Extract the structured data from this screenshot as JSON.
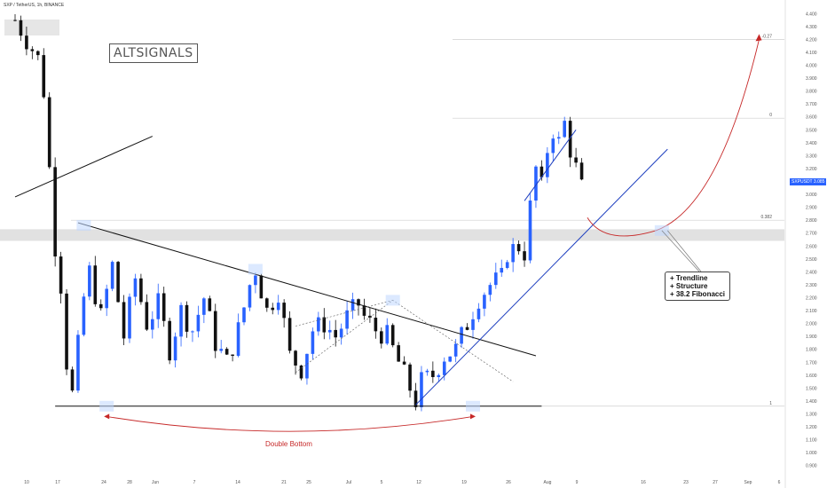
{
  "header": {
    "symbol": "SXP / TetherUS, 1h, BINANCE"
  },
  "brand": {
    "label": "ALTSIGNALS"
  },
  "annotations": {
    "note_lines": [
      "+ Trendline",
      "+ Structure",
      "+ 38.2 Fibonacci"
    ],
    "double_bottom": "Double Bottom",
    "fib_labels": [
      "-0.27",
      "0",
      "0.382",
      "1"
    ]
  },
  "price_tag": {
    "symbol": "SXPUSDT",
    "value": "3.085"
  },
  "colors": {
    "up": "#2962ff",
    "down": "#111111",
    "projection": "#c62828",
    "trend": "#1e3fbf",
    "zone": "#dcdcdc"
  },
  "chart_data": {
    "type": "candlestick",
    "y_ticks": [
      "4.400",
      "4.300",
      "4.200",
      "4.100",
      "4.000",
      "3.900",
      "3.800",
      "3.700",
      "3.600",
      "3.500",
      "3.400",
      "3.300",
      "3.200",
      "3.100",
      "3.000",
      "2.900",
      "2.800",
      "2.700",
      "2.600",
      "2.500",
      "2.400",
      "2.300",
      "2.200",
      "2.100",
      "2.000",
      "1.900",
      "1.800",
      "1.700",
      "1.600",
      "1.500",
      "1.400",
      "1.300",
      "1.200",
      "1.100",
      "1.000",
      "0.900"
    ],
    "x_ticks": [
      "10",
      "17",
      "24",
      "28",
      "Jun",
      "7",
      "14",
      "21",
      "25",
      "Jul",
      "5",
      "12",
      "19",
      "26",
      "Aug",
      "9",
      "16",
      "23",
      "27",
      "Sep",
      "6"
    ],
    "ylim": [
      0.85,
      4.45
    ],
    "grid": false,
    "close_path": [
      [
        0,
        4.35
      ],
      [
        4,
        4.05
      ],
      [
        5,
        3.8
      ],
      [
        6,
        3.2
      ],
      [
        7,
        2.6
      ],
      [
        8,
        2.3
      ],
      [
        9,
        1.7
      ],
      [
        10,
        1.45
      ],
      [
        12,
        2.2
      ],
      [
        13,
        2.4
      ],
      [
        15,
        2.05
      ],
      [
        17,
        2.45
      ],
      [
        19,
        1.9
      ],
      [
        21,
        2.35
      ],
      [
        23,
        2.0
      ],
      [
        25,
        2.15
      ],
      [
        27,
        1.8
      ],
      [
        29,
        2.1
      ],
      [
        31,
        1.95
      ],
      [
        33,
        2.2
      ],
      [
        35,
        1.85
      ],
      [
        37,
        1.7
      ],
      [
        39,
        1.95
      ],
      [
        41,
        2.3
      ],
      [
        42,
        2.42
      ],
      [
        44,
        2.1
      ],
      [
        46,
        2.25
      ],
      [
        48,
        1.75
      ],
      [
        50,
        1.65
      ],
      [
        52,
        1.95
      ],
      [
        54,
        2.0
      ],
      [
        56,
        1.9
      ],
      [
        58,
        2.05
      ],
      [
        60,
        2.15
      ],
      [
        61,
        2.05
      ],
      [
        63,
        1.95
      ],
      [
        65,
        1.9
      ],
      [
        67,
        1.7
      ],
      [
        69,
        1.5
      ],
      [
        70,
        1.4
      ],
      [
        71,
        1.55
      ],
      [
        73,
        1.6
      ],
      [
        75,
        1.75
      ],
      [
        77,
        1.8
      ],
      [
        79,
        2.0
      ],
      [
        81,
        2.2
      ],
      [
        83,
        2.3
      ],
      [
        85,
        2.35
      ],
      [
        86,
        2.55
      ],
      [
        88,
        2.6
      ],
      [
        89,
        2.55
      ],
      [
        90,
        2.9
      ],
      [
        91,
        3.2
      ],
      [
        92,
        3.05
      ],
      [
        93,
        3.35
      ],
      [
        94,
        3.5
      ],
      [
        95,
        3.4
      ],
      [
        96,
        3.55
      ],
      [
        97,
        3.35
      ],
      [
        98,
        3.2
      ],
      [
        99,
        3.05
      ]
    ],
    "annotation_lines": [
      {
        "name": "steep-downtrend",
        "points": [
          [
            0,
            2.98
          ],
          [
            24,
            3.45
          ]
        ]
      },
      {
        "name": "descending-resistance",
        "points": [
          [
            11,
            2.78
          ],
          [
            91,
            1.75
          ]
        ]
      },
      {
        "name": "support-base",
        "points": [
          [
            7,
            1.36
          ],
          [
            92,
            1.36
          ]
        ]
      },
      {
        "name": "ascending-trendline",
        "points": [
          [
            70,
            1.37
          ],
          [
            114,
            3.35
          ]
        ]
      },
      {
        "name": "short-uptrend",
        "points": [
          [
            89,
            2.95
          ],
          [
            98,
            3.5
          ]
        ]
      }
    ],
    "levels": [
      {
        "label": "-0.27",
        "price": 4.2
      },
      {
        "label": "0",
        "price": 3.59
      },
      {
        "label": "0.382",
        "price": 2.8
      },
      {
        "label": "1",
        "price": 1.36
      }
    ],
    "resistance_zone": [
      2.64,
      2.73
    ]
  }
}
